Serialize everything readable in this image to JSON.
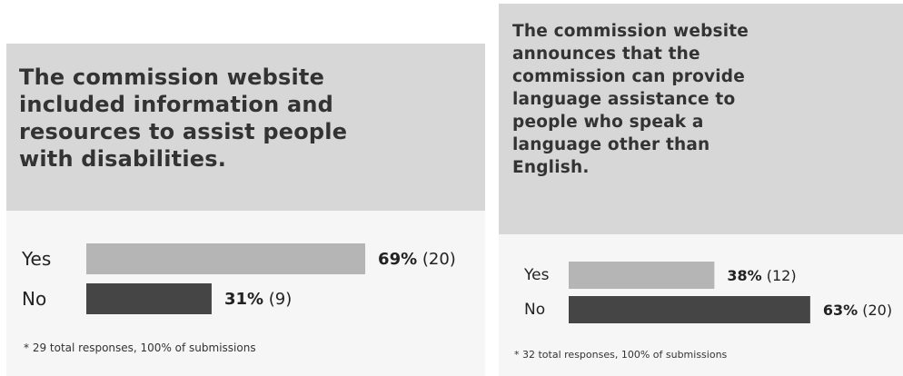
{
  "charts": [
    {
      "title": "The commission website included information and resources to assist people with disabilities.",
      "footnote": "* 29 total responses, 100% of submissions"
    },
    {
      "title": "The commission website announces that the commission can provide language assistance to people who speak a language other than English.",
      "footnote": "* 32 total responses, 100% of submissions"
    }
  ],
  "chart_data": [
    {
      "type": "bar",
      "orientation": "horizontal",
      "title": "The commission website included information and resources to assist people with disabilities.",
      "categories": [
        "Yes",
        "No"
      ],
      "values": [
        69,
        31
      ],
      "counts": [
        20,
        9
      ],
      "value_labels": [
        {
          "pct": "69%",
          "count": "(20)"
        },
        {
          "pct": "31%",
          "count": "(9)"
        }
      ],
      "unit": "%",
      "xlim": [
        0,
        100
      ],
      "grid": false,
      "colors": [
        "#b5b5b5",
        "#454545"
      ],
      "footnote": "* 29 total responses, 100% of submissions"
    },
    {
      "type": "bar",
      "orientation": "horizontal",
      "title": "The commission website announces that the commission can provide language assistance to people who speak a language other than English.",
      "categories": [
        "Yes",
        "No"
      ],
      "values": [
        38,
        63
      ],
      "counts": [
        12,
        20
      ],
      "value_labels": [
        {
          "pct": "38%",
          "count": "(12)"
        },
        {
          "pct": "63%",
          "count": "(20)"
        }
      ],
      "unit": "%",
      "xlim": [
        0,
        100
      ],
      "grid": false,
      "colors": [
        "#b5b5b5",
        "#454545"
      ],
      "footnote": "* 32 total responses, 100% of submissions"
    }
  ]
}
